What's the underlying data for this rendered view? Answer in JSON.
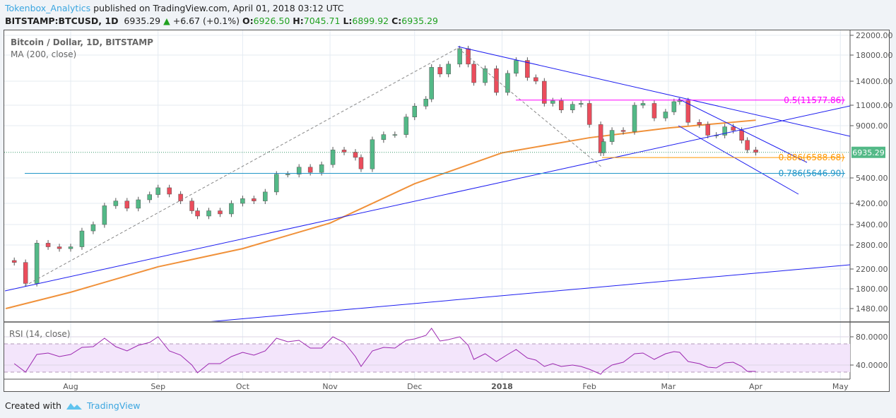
{
  "header": {
    "author": "Tokenbox_Analytics",
    "published": "published on TradingView.com, April 01, 2018 03:12 UTC",
    "symbol": "BITSTAMP:BTCUSD, 1D",
    "last": "6935.29",
    "change": "+6.67 (+0.1%)",
    "o_label": "O:",
    "o": "6926.50",
    "h_label": "H:",
    "h": "7045.71",
    "l_label": "L:",
    "l": "6899.92",
    "c_label": "C:",
    "c": "6935.29"
  },
  "legend": {
    "title": "Bitcoin / Dollar, 1D, BITSTAMP",
    "ma": "MA (200, close)",
    "rsi": "RSI (14, close)"
  },
  "footer": {
    "created": "Created with",
    "brand": "TradingView"
  },
  "colors": {
    "up": "#53b987",
    "down": "#eb4d5c",
    "ma": "#f0913a",
    "rsi": "#9c27b0",
    "trend": "#1c1cf0",
    "fib05": "#ff00ff",
    "fib0886": "#ff9800",
    "fib0786": "#2196c8",
    "price_tag": "#53b987"
  },
  "chart_data": [
    {
      "type": "candlestick",
      "title": "Bitcoin / Dollar, 1D, BITSTAMP",
      "y_scale": "log",
      "ylim": [
        1300,
        22500
      ],
      "y_ticks": [
        "22000.00",
        "18000.00",
        "14000.00",
        "11000.00",
        "9000.00",
        "5400.00",
        "4200.00",
        "3400.00",
        "2800.00",
        "2200.00",
        "1800.00",
        "1480.00"
      ],
      "x_ticks": [
        "Aug",
        "Sep",
        "Oct",
        "Nov",
        "Dec",
        "2018",
        "Feb",
        "Mar",
        "Apr",
        "May"
      ],
      "last_price_label": "6935.29",
      "dates": [
        "2017-07-12",
        "2017-07-16",
        "2017-07-20",
        "2017-07-24",
        "2017-07-28",
        "2017-08-01",
        "2017-08-05",
        "2017-08-09",
        "2017-08-13",
        "2017-08-17",
        "2017-08-21",
        "2017-08-25",
        "2017-08-29",
        "2017-09-01",
        "2017-09-05",
        "2017-09-09",
        "2017-09-13",
        "2017-09-15",
        "2017-09-19",
        "2017-09-23",
        "2017-09-27",
        "2017-10-01",
        "2017-10-05",
        "2017-10-09",
        "2017-10-13",
        "2017-10-17",
        "2017-10-21",
        "2017-10-25",
        "2017-10-29",
        "2017-11-02",
        "2017-11-06",
        "2017-11-10",
        "2017-11-12",
        "2017-11-16",
        "2017-11-20",
        "2017-11-24",
        "2017-11-28",
        "2017-12-01",
        "2017-12-05",
        "2017-12-07",
        "2017-12-10",
        "2017-12-13",
        "2017-12-17",
        "2017-12-20",
        "2017-12-22",
        "2017-12-26",
        "2017-12-30",
        "2018-01-03",
        "2018-01-06",
        "2018-01-10",
        "2018-01-13",
        "2018-01-16",
        "2018-01-19",
        "2018-01-22",
        "2018-01-26",
        "2018-01-29",
        "2018-02-01",
        "2018-02-05",
        "2018-02-06",
        "2018-02-09",
        "2018-02-13",
        "2018-02-17",
        "2018-02-20",
        "2018-02-24",
        "2018-02-28",
        "2018-03-03",
        "2018-03-05",
        "2018-03-08",
        "2018-03-12",
        "2018-03-15",
        "2018-03-18",
        "2018-03-21",
        "2018-03-24",
        "2018-03-27",
        "2018-03-29",
        "2018-04-01"
      ],
      "close": [
        2350,
        1900,
        2850,
        2750,
        2700,
        2750,
        3200,
        3400,
        4100,
        4300,
        4000,
        4350,
        4580,
        4900,
        4600,
        4300,
        3900,
        3700,
        3900,
        3780,
        4200,
        4400,
        4300,
        4700,
        5600,
        5600,
        6000,
        5700,
        6150,
        7100,
        6950,
        6600,
        5900,
        7850,
        8250,
        8250,
        9800,
        10900,
        11700,
        16000,
        15000,
        16500,
        19200,
        16500,
        13800,
        15800,
        12500,
        15100,
        17100,
        14500,
        14000,
        11200,
        11500,
        10500,
        11100,
        11200,
        9100,
        6900,
        7700,
        8600,
        8500,
        11000,
        11200,
        9700,
        10300,
        11400,
        11500,
        9300,
        9100,
        8200,
        8200,
        8900,
        8600,
        7800,
        7100,
        6935
      ],
      "ma200": {
        "name": "MA (200, close)",
        "dates": [
          "2017-07-09",
          "2017-08-01",
          "2017-09-01",
          "2017-10-01",
          "2017-11-01",
          "2017-12-01",
          "2018-01-01",
          "2018-02-01",
          "2018-03-01",
          "2018-04-01"
        ],
        "values": [
          1480,
          1740,
          2250,
          2700,
          3450,
          5100,
          6900,
          8000,
          8800,
          9500
        ]
      },
      "fibonacci": [
        {
          "label": "0.5(11577.86)",
          "price": 11577.86
        },
        {
          "label": "0.886(6588.68)",
          "price": 6588.68
        },
        {
          "label": "0.786(5646.90)",
          "price": 5646.9
        }
      ]
    },
    {
      "type": "line",
      "title": "RSI (14, close)",
      "ylim": [
        20,
        95
      ],
      "y_ticks": [
        "80.0000",
        "40.0000"
      ],
      "bands": [
        30,
        70
      ],
      "values": [
        42,
        30,
        55,
        57,
        52,
        55,
        65,
        66,
        78,
        66,
        60,
        68,
        72,
        80,
        60,
        54,
        40,
        29,
        42,
        42,
        52,
        58,
        54,
        60,
        78,
        73,
        75,
        64,
        64,
        80,
        72,
        52,
        38,
        60,
        65,
        64,
        75,
        77,
        82,
        92,
        74,
        76,
        80,
        68,
        48,
        56,
        45,
        55,
        62,
        50,
        47,
        38,
        42,
        38,
        40,
        38,
        34,
        27,
        32,
        40,
        44,
        56,
        57,
        48,
        56,
        59,
        58,
        45,
        42,
        37,
        36,
        43,
        44,
        38,
        31,
        31
      ]
    }
  ]
}
